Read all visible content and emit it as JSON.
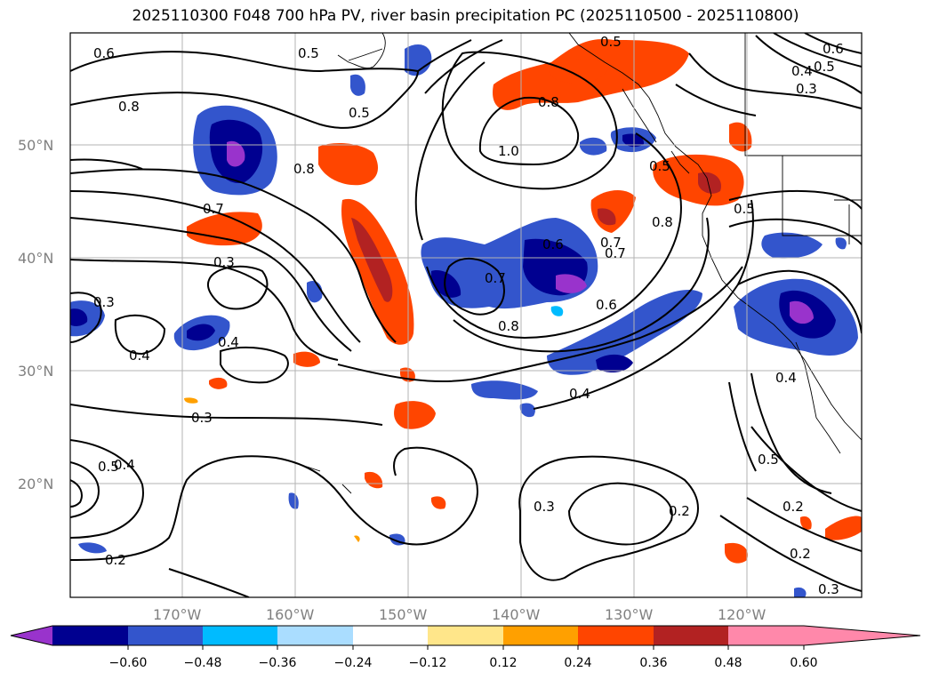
{
  "title": "2025110300 F048 700 hPa PV, river basin precipitation PC (2025110500 - 2025110800)",
  "latitude_labels": [
    "50°N",
    "40°N",
    "30°N",
    "20°N"
  ],
  "longitude_labels": [
    "170°W",
    "160°W",
    "150°W",
    "140°W",
    "130°W",
    "120°W"
  ],
  "contour_labels": [
    "0.6",
    "0.8",
    "0.7",
    "0.3",
    "0.3",
    "0.4",
    "0.4",
    "0.3",
    "0.4",
    "0.5",
    "0.2",
    "0.5",
    "0.5",
    "0.8",
    "1.0",
    "0.7",
    "0.6",
    "0.7",
    "0.8",
    "0.6",
    "0.5",
    "0.4",
    "0.3",
    "0.2",
    "0.8",
    "0.5",
    "0.8",
    "0.7",
    "0.5",
    "0.6",
    "0.5",
    "0.4",
    "0.3",
    "0.4",
    "0.5",
    "0.2",
    "0.2",
    "0.3"
  ],
  "colorbar": {
    "ticks": [
      "−0.60",
      "−0.48",
      "−0.36",
      "−0.24",
      "−0.12",
      "0.12",
      "0.24",
      "0.36",
      "0.48",
      "0.60"
    ],
    "colors": [
      "#9933cc",
      "#000090",
      "#3355cc",
      "#00bbff",
      "#aaddff",
      "#ffffff",
      "#ffe68a",
      "#ffa000",
      "#ff4500",
      "#b22222",
      "#ff88aa"
    ]
  }
}
